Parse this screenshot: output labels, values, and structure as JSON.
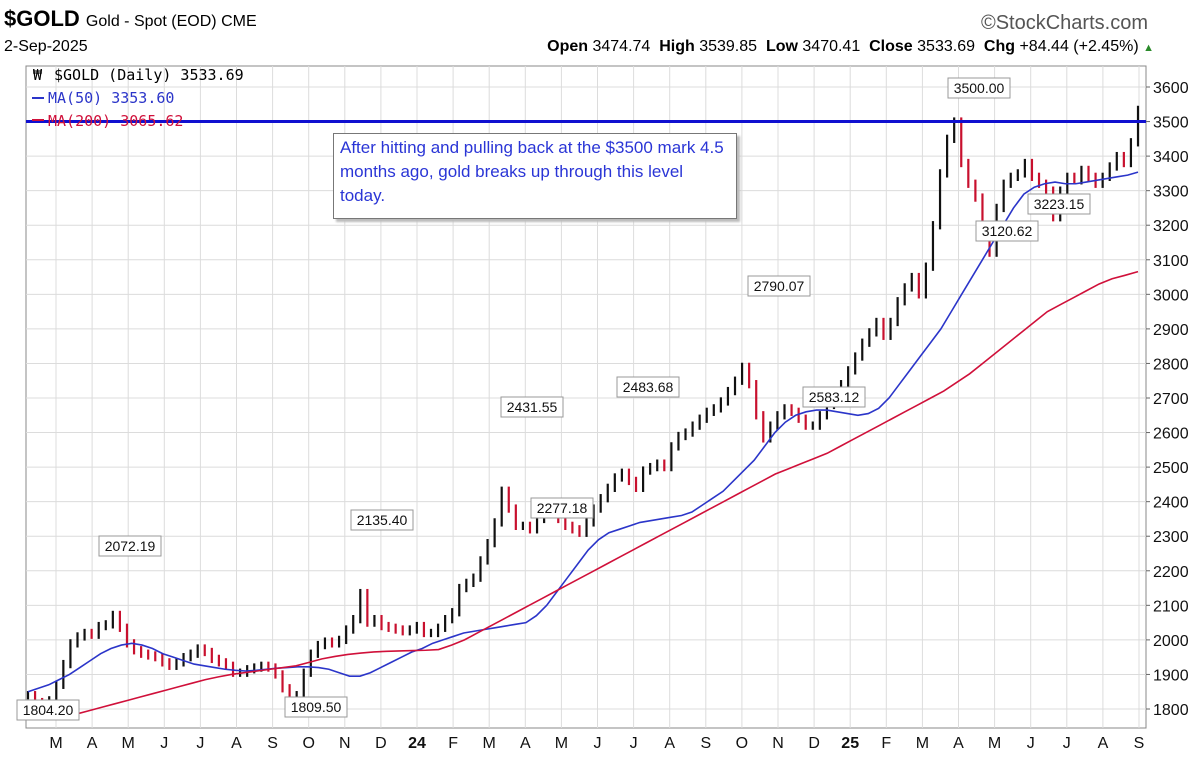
{
  "header": {
    "symbol": "$GOLD",
    "name": "Gold - Spot (EOD) CME",
    "brand": "©StockCharts.com",
    "date": "2-Sep-2025",
    "open_label": "Open",
    "open": "3474.74",
    "high_label": "High",
    "high": "3539.85",
    "low_label": "Low",
    "low": "3470.41",
    "close_label": "Close",
    "close": "3533.69",
    "chg_label": "Chg",
    "chg": "+84.44 (+2.45%)"
  },
  "legend": {
    "main": "$GOLD (Daily) 3533.69",
    "ma50": "MA(50) 3353.60",
    "ma200": "MA(200) 3065.62"
  },
  "annotation": "After hitting and pulling back at the $3500 mark 4.5 months ago, gold breaks up through this level today.",
  "colors": {
    "ma50": "#2b35c9",
    "ma200": "#d0103a",
    "hline": "#1010d0",
    "up": "#111111",
    "down": "#c8102e"
  },
  "chart_data": {
    "type": "line",
    "title": "$GOLD (Daily)",
    "ylim": [
      1750,
      3650
    ],
    "yticks": [
      1800,
      1900,
      2000,
      2100,
      2200,
      2300,
      2400,
      2500,
      2600,
      2700,
      2800,
      2900,
      3000,
      3100,
      3200,
      3300,
      3400,
      3500,
      3600
    ],
    "xticks": [
      "M",
      "A",
      "M",
      "J",
      "J",
      "A",
      "S",
      "O",
      "N",
      "D",
      "24",
      "F",
      "M",
      "A",
      "M",
      "J",
      "J",
      "A",
      "S",
      "O",
      "N",
      "D",
      "25",
      "F",
      "M",
      "A",
      "M",
      "J",
      "J",
      "A",
      "S"
    ],
    "x_start_month": "2023-03",
    "horizontal_line": 3500,
    "series": [
      {
        "name": "$GOLD",
        "values": [
          1840,
          1820,
          1804.2,
          1825,
          1870,
          1930,
          1990,
          2010,
          2020,
          2015,
          2040,
          2045,
          2072.19,
          2035,
          1990,
          1970,
          1960,
          1955,
          1950,
          1935,
          1925,
          1935,
          1950,
          1960,
          1975,
          1965,
          1945,
          1935,
          1925,
          1905,
          1905,
          1915,
          1920,
          1925,
          1920,
          1900,
          1860,
          1809.5,
          1840,
          1905,
          1960,
          1985,
          1995,
          1990,
          2000,
          2030,
          2060,
          2135.4,
          2050,
          2060,
          2040,
          2035,
          2030,
          2025,
          2030,
          2040,
          2020,
          2020,
          2035,
          2060,
          2080,
          2150,
          2165,
          2180,
          2230,
          2280,
          2340,
          2431.55,
          2380,
          2330,
          2330,
          2320,
          2350,
          2370,
          2380,
          2350,
          2330,
          2320,
          2310,
          2340,
          2380,
          2410,
          2440,
          2470,
          2483.68,
          2460,
          2440,
          2490,
          2500,
          2510,
          2500,
          2560,
          2590,
          2600,
          2620,
          2640,
          2660,
          2670,
          2690,
          2720,
          2750,
          2790.07,
          2740,
          2650,
          2583.12,
          2620,
          2650,
          2670,
          2660,
          2640,
          2620,
          2620,
          2650,
          2680,
          2700,
          2740,
          2780,
          2820,
          2860,
          2890,
          2920,
          2880,
          2920,
          2980,
          3020,
          3050,
          3000,
          3080,
          3200,
          3350,
          3450,
          3500,
          3380,
          3320,
          3280,
          3200,
          3120.62,
          3250,
          3320,
          3340,
          3350,
          3380,
          3340,
          3320,
          3300,
          3223.15,
          3300,
          3340,
          3330,
          3360,
          3340,
          3320,
          3340,
          3370,
          3400,
          3380,
          3440,
          3533.69
        ]
      },
      {
        "name": "MA(50)",
        "values": [
          1850,
          1860,
          1870,
          1885,
          1900,
          1920,
          1940,
          1960,
          1975,
          1985,
          1990,
          1985,
          1975,
          1960,
          1950,
          1940,
          1930,
          1925,
          1920,
          1915,
          1912,
          1910,
          1912,
          1915,
          1918,
          1920,
          1922,
          1922,
          1920,
          1915,
          1905,
          1895,
          1895,
          1905,
          1920,
          1935,
          1950,
          1965,
          1975,
          1990,
          2000,
          2010,
          2020,
          2025,
          2030,
          2035,
          2040,
          2045,
          2050,
          2070,
          2100,
          2140,
          2180,
          2220,
          2260,
          2290,
          2310,
          2320,
          2330,
          2340,
          2345,
          2350,
          2355,
          2360,
          2370,
          2390,
          2410,
          2430,
          2460,
          2490,
          2520,
          2560,
          2600,
          2630,
          2650,
          2660,
          2665,
          2665,
          2660,
          2655,
          2650,
          2655,
          2670,
          2700,
          2740,
          2780,
          2820,
          2860,
          2900,
          2950,
          3000,
          3050,
          3100,
          3150,
          3200,
          3250,
          3290,
          3310,
          3320,
          3325,
          3320,
          3320,
          3325,
          3330,
          3335,
          3340,
          3345,
          3353.6
        ]
      },
      {
        "name": "MA(200)",
        "values": [
          1770,
          1775,
          1785,
          1795,
          1805,
          1815,
          1825,
          1835,
          1845,
          1855,
          1865,
          1875,
          1885,
          1893,
          1900,
          1905,
          1910,
          1915,
          1920,
          1925,
          1935,
          1945,
          1952,
          1958,
          1962,
          1965,
          1967,
          1968,
          1969,
          1970,
          1972,
          1985,
          2000,
          2020,
          2040,
          2060,
          2080,
          2100,
          2120,
          2140,
          2160,
          2180,
          2200,
          2220,
          2240,
          2260,
          2280,
          2300,
          2320,
          2340,
          2360,
          2380,
          2400,
          2420,
          2440,
          2460,
          2480,
          2495,
          2510,
          2525,
          2540,
          2560,
          2580,
          2600,
          2620,
          2640,
          2660,
          2680,
          2700,
          2720,
          2745,
          2770,
          2800,
          2830,
          2860,
          2890,
          2920,
          2950,
          2970,
          2990,
          3010,
          3030,
          3045,
          3055,
          3065.62
        ]
      }
    ],
    "annotations": [
      {
        "label": "1804.20",
        "value": 1804.2
      },
      {
        "label": "2072.19",
        "value": 2072.19
      },
      {
        "label": "1809.50",
        "value": 1809.5
      },
      {
        "label": "2135.40",
        "value": 2135.4
      },
      {
        "label": "2431.55",
        "value": 2431.55
      },
      {
        "label": "2277.18",
        "value": 2277.18
      },
      {
        "label": "2483.68",
        "value": 2483.68
      },
      {
        "label": "2790.07",
        "value": 2790.07
      },
      {
        "label": "2583.12",
        "value": 2583.12
      },
      {
        "label": "3500.00",
        "value": 3500.0
      },
      {
        "label": "3120.62",
        "value": 3120.62
      },
      {
        "label": "3223.15",
        "value": 3223.15
      }
    ]
  }
}
